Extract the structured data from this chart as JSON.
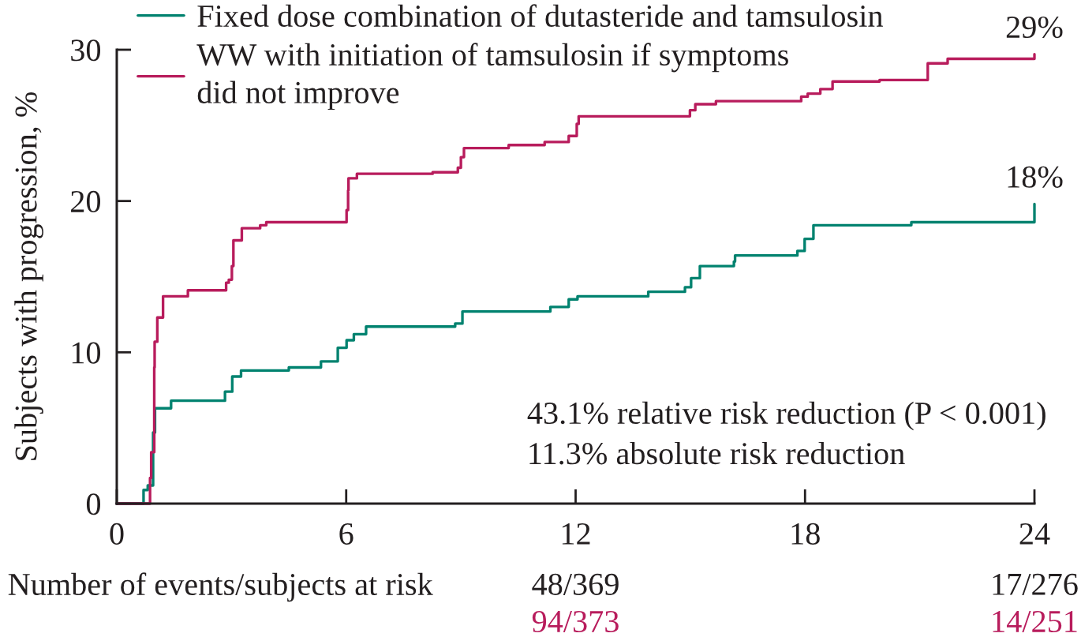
{
  "chart_data": {
    "type": "step",
    "ylabel": "Subjects with progression, %",
    "xlim": [
      0,
      24
    ],
    "ylim": [
      0,
      30
    ],
    "xticks": [
      0,
      6,
      12,
      18,
      24
    ],
    "yticks": [
      0,
      10,
      20,
      30
    ],
    "grid": false,
    "legend": "top left",
    "series": [
      {
        "name": "Fixed dose combination of dutasteride and tamsulosin",
        "color": "#00826f",
        "x": [
          0,
          0.7,
          0.81,
          0.95,
          1.0,
          1.42,
          2.83,
          3.02,
          3.25,
          4.5,
          5.34,
          5.78,
          6.01,
          6.2,
          6.52,
          8.85,
          9.04,
          11.34,
          11.82,
          12.05,
          13.9,
          14.86,
          15.02,
          15.25,
          16.14,
          16.17,
          17.8,
          17.99,
          18.22,
          20.78,
          24.0
        ],
        "values": [
          0,
          0.9,
          1.2,
          4.7,
          6.3,
          6.8,
          7.4,
          8.4,
          8.8,
          9.0,
          9.4,
          10.3,
          10.8,
          11.2,
          11.7,
          11.9,
          12.7,
          13.0,
          13.5,
          13.7,
          14.0,
          14.3,
          14.9,
          15.7,
          16.0,
          16.4,
          16.7,
          17.5,
          18.4,
          18.6,
          19.8
        ]
      },
      {
        "name": "WW with initiation of tamsulosin if symptoms\ndid not improve",
        "color": "#b81c5c",
        "x": [
          0,
          0.87,
          0.9,
          0.98,
          0.99,
          1.06,
          1.21,
          1.86,
          2.86,
          2.93,
          3.01,
          3.05,
          3.27,
          3.75,
          3.91,
          6.01,
          6.05,
          6.06,
          6.28,
          8.26,
          8.92,
          9.0,
          9.08,
          10.25,
          11.19,
          11.82,
          12.03,
          12.08,
          14.99,
          15.13,
          15.67,
          17.9,
          18.07,
          18.4,
          18.72,
          19.95,
          21.21,
          21.73,
          24.0
        ],
        "values": [
          0,
          1.7,
          3.4,
          9.0,
          10.7,
          12.3,
          13.7,
          14.1,
          14.6,
          14.8,
          15.7,
          17.4,
          18.2,
          18.4,
          18.6,
          19.4,
          20.7,
          21.5,
          21.8,
          21.9,
          22.2,
          22.9,
          23.5,
          23.7,
          23.9,
          24.3,
          25.1,
          25.6,
          26.0,
          26.4,
          26.6,
          26.9,
          27.1,
          27.4,
          27.9,
          28.0,
          29.1,
          29.4,
          29.7
        ]
      }
    ],
    "annotations": [
      "18%",
      "29%",
      "43.1% relative risk reduction (P < 0.001)",
      "11.3% absolute risk reduction",
      "Number of events/subjects at risk",
      "48/369",
      "17/276",
      "94/373",
      "14/251"
    ]
  }
}
